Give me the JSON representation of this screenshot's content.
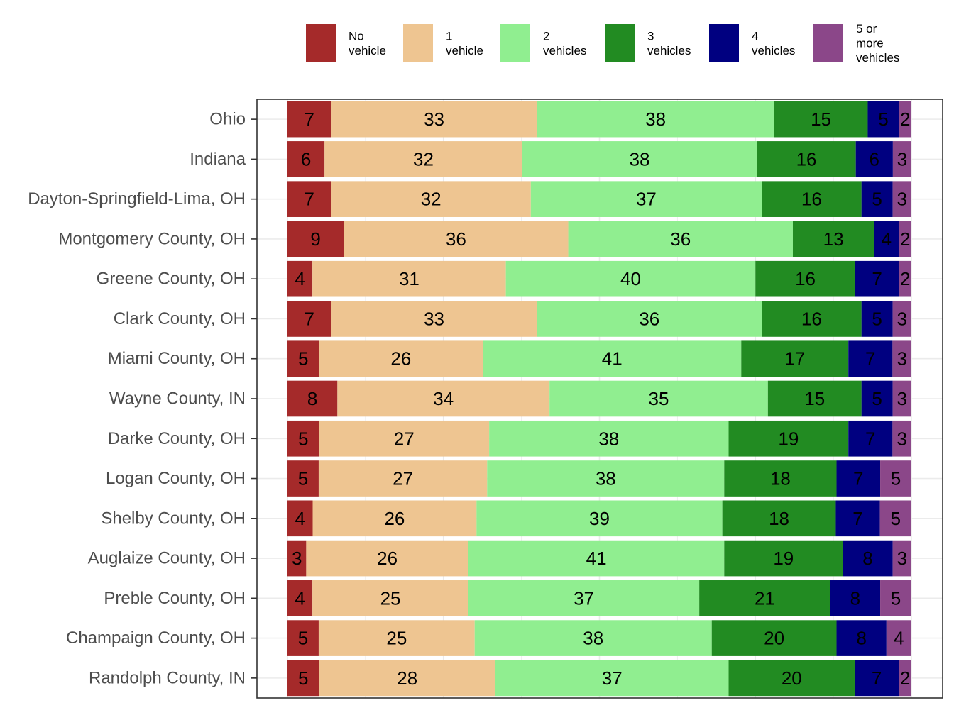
{
  "chart_data": {
    "type": "bar",
    "orientation": "horizontal",
    "stacked": true,
    "units": "percent",
    "title": "",
    "xlabel": "",
    "ylabel": "",
    "xlim": [
      0,
      100
    ],
    "grid": true,
    "legend_position": "top-right",
    "categories": [
      "Ohio",
      "Indiana",
      "Dayton-Springfield-Lima, OH",
      "Montgomery County, OH",
      "Greene County, OH",
      "Clark County, OH",
      "Miami County, OH",
      "Wayne County, IN",
      "Darke County, OH",
      "Logan County, OH",
      "Shelby County, OH",
      "Auglaize County, OH",
      "Preble County, OH",
      "Champaign County, OH",
      "Randolph County, IN"
    ],
    "series": [
      {
        "name": "No vehicle",
        "legend_lines": [
          "No",
          "vehicle"
        ],
        "color": "#A52A2A",
        "values": [
          7,
          6,
          7,
          9,
          4,
          7,
          5,
          8,
          5,
          5,
          4,
          3,
          4,
          5,
          5
        ]
      },
      {
        "name": "1 vehicle",
        "legend_lines": [
          "1",
          "vehicle"
        ],
        "color": "#EEC591",
        "values": [
          33,
          32,
          32,
          36,
          31,
          33,
          26,
          34,
          27,
          27,
          26,
          26,
          25,
          25,
          28
        ]
      },
      {
        "name": "2 vehicles",
        "legend_lines": [
          "2",
          "vehicles"
        ],
        "color": "#90EE90",
        "values": [
          38,
          38,
          37,
          36,
          40,
          36,
          41,
          35,
          38,
          38,
          39,
          41,
          37,
          38,
          37
        ]
      },
      {
        "name": "3 vehicles",
        "legend_lines": [
          "3",
          "vehicles"
        ],
        "color": "#228B22",
        "values": [
          15,
          16,
          16,
          13,
          16,
          16,
          17,
          15,
          19,
          18,
          18,
          19,
          21,
          20,
          20
        ]
      },
      {
        "name": "4 vehicles",
        "legend_lines": [
          "4",
          "vehicles"
        ],
        "color": "#000080",
        "values": [
          5,
          6,
          5,
          4,
          7,
          5,
          7,
          5,
          7,
          7,
          7,
          8,
          8,
          8,
          7
        ]
      },
      {
        "name": "5 or more vehicles",
        "legend_lines": [
          "5 or",
          "more",
          "vehicles"
        ],
        "color": "#8B4789",
        "values": [
          2,
          3,
          3,
          2,
          2,
          3,
          3,
          3,
          3,
          5,
          5,
          3,
          5,
          4,
          2
        ]
      }
    ]
  }
}
